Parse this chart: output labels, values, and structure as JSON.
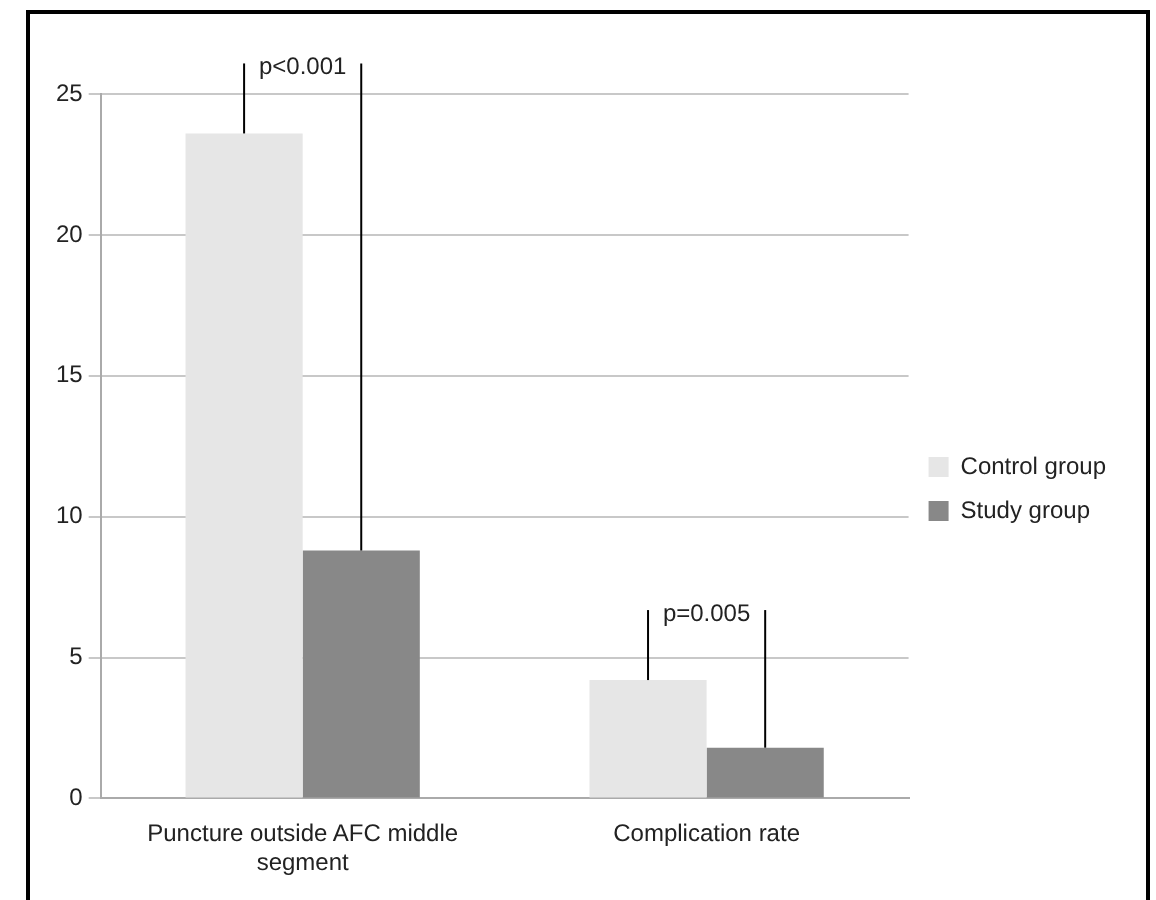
{
  "chart_data": {
    "type": "bar",
    "categories": [
      "Puncture outside AFC middle segment",
      "Complication rate"
    ],
    "series": [
      {
        "name": "Control group",
        "color": "#e6e6e6",
        "values": [
          23.6,
          4.2
        ]
      },
      {
        "name": "Study group",
        "color": "#888888",
        "values": [
          8.8,
          1.8
        ]
      }
    ],
    "ylim": [
      0,
      25
    ],
    "yticks": [
      0,
      5,
      10,
      15,
      20,
      25
    ],
    "grid": "y",
    "legend": "right",
    "annotations": [
      {
        "text": "p<0.001",
        "x": "Puncture outside AFC middle segment",
        "y": 23.6
      },
      {
        "text": "p=0.005",
        "x": "Complication rate",
        "y": 4.2
      }
    ]
  }
}
